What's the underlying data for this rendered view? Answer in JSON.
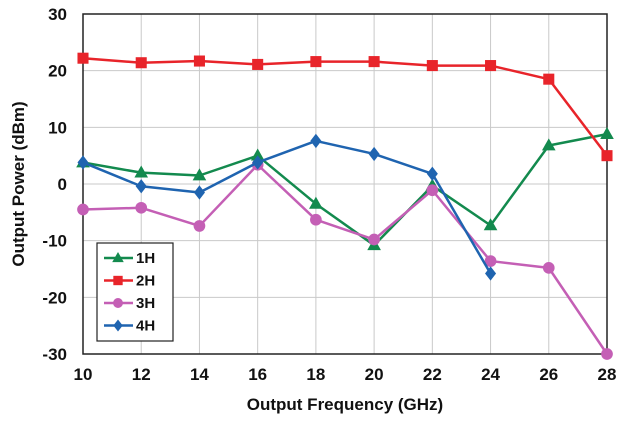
{
  "chart_data": {
    "type": "line",
    "xlabel": "Output Frequency (GHz)",
    "ylabel": "Output Power (dBm)",
    "xlim": [
      10,
      28
    ],
    "ylim": [
      -30,
      30
    ],
    "x_ticks": [
      "10",
      "12",
      "14",
      "16",
      "18",
      "20",
      "22",
      "24",
      "26",
      "28"
    ],
    "y_ticks": [
      "-30",
      "-20",
      "-10",
      "0",
      "10",
      "20",
      "30"
    ],
    "grid": true,
    "legend_position": "bottom-left",
    "series": [
      {
        "name": "1H",
        "color": "#138a4e",
        "marker": "triangle",
        "x": [
          10,
          12,
          14,
          16,
          18,
          20,
          22,
          24,
          26,
          28
        ],
        "y": [
          3.8,
          2.0,
          1.5,
          5.0,
          -3.5,
          -10.8,
          -0.3,
          -7.3,
          6.8,
          8.8
        ]
      },
      {
        "name": "2H",
        "color": "#e8242a",
        "marker": "square",
        "x": [
          10,
          12,
          14,
          16,
          18,
          20,
          22,
          24,
          26,
          28
        ],
        "y": [
          22.2,
          21.4,
          21.7,
          21.1,
          21.6,
          21.6,
          20.9,
          20.9,
          18.5,
          5.0
        ]
      },
      {
        "name": "3H",
        "color": "#c45fb5",
        "marker": "circle",
        "x": [
          10,
          12,
          14,
          16,
          18,
          20,
          22,
          24,
          26,
          28
        ],
        "y": [
          -4.5,
          -4.2,
          -7.4,
          3.4,
          -6.3,
          -9.8,
          -1.1,
          -13.6,
          -14.8,
          -30.0
        ]
      },
      {
        "name": "4H",
        "color": "#1f64b0",
        "marker": "diamond",
        "x": [
          10,
          12,
          14,
          16,
          18,
          20,
          22,
          24
        ],
        "y": [
          3.8,
          -0.4,
          -1.5,
          3.8,
          7.6,
          5.3,
          1.8,
          -15.8
        ]
      }
    ]
  }
}
